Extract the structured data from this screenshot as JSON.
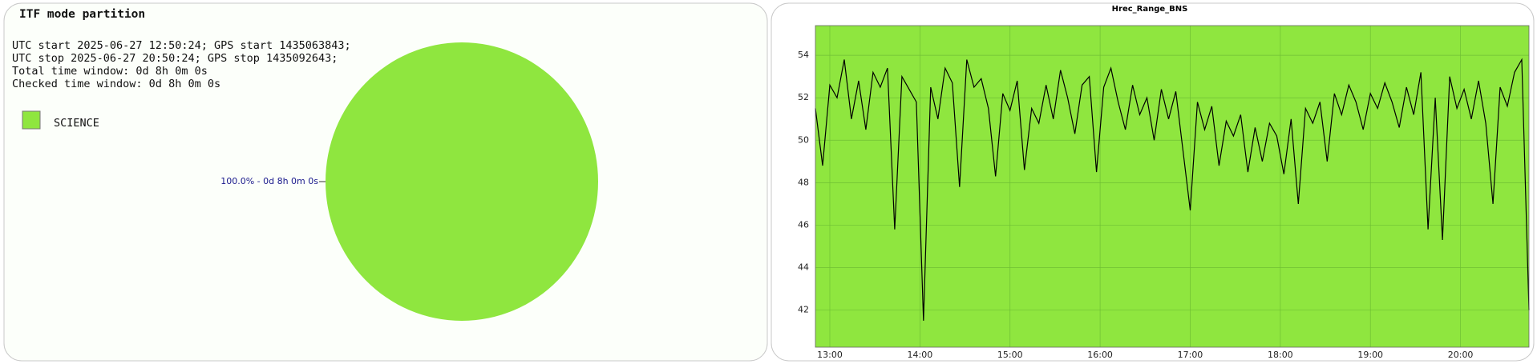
{
  "chart_data": [
    {
      "type": "pie",
      "title": "ITF mode partition",
      "annotations": [
        "UTC start 2025-06-27 12:50:24; GPS start 1435063843;",
        "UTC stop 2025-06-27 20:50:24; GPS stop 1435092643;",
        "Total time window: 0d 8h 0m 0s",
        "Checked time window: 0d 8h 0m 0s"
      ],
      "categories": [
        "SCIENCE"
      ],
      "values": [
        100
      ],
      "value_labels": [
        "100.0% - 0d 8h 0m 0s"
      ],
      "colors": [
        "#8fe63f"
      ]
    },
    {
      "type": "line",
      "title": "Hrec_Range_BNS",
      "color": "#000000",
      "background": "#8fe63f",
      "grid": true,
      "x": [
        12.84,
        12.92,
        13.0,
        13.08,
        13.16,
        13.24,
        13.32,
        13.4,
        13.48,
        13.56,
        13.64,
        13.72,
        13.8,
        13.88,
        13.96,
        14.04,
        14.12,
        14.2,
        14.28,
        14.36,
        14.44,
        14.52,
        14.6,
        14.68,
        14.76,
        14.84,
        14.92,
        15.0,
        15.08,
        15.16,
        15.24,
        15.32,
        15.4,
        15.48,
        15.56,
        15.64,
        15.72,
        15.8,
        15.88,
        15.96,
        16.04,
        16.12,
        16.2,
        16.28,
        16.36,
        16.44,
        16.52,
        16.6,
        16.68,
        16.76,
        16.84,
        16.92,
        17.0,
        17.08,
        17.16,
        17.24,
        17.32,
        17.4,
        17.48,
        17.56,
        17.64,
        17.72,
        17.8,
        17.88,
        17.96,
        18.04,
        18.12,
        18.2,
        18.28,
        18.36,
        18.44,
        18.52,
        18.6,
        18.68,
        18.76,
        18.84,
        18.92,
        19.0,
        19.08,
        19.16,
        19.24,
        19.32,
        19.4,
        19.48,
        19.56,
        19.64,
        19.72,
        19.8,
        19.88,
        19.96,
        20.04,
        20.12,
        20.2,
        20.28,
        20.36,
        20.44,
        20.52,
        20.6,
        20.68,
        20.76
      ],
      "values": [
        51.5,
        48.8,
        52.6,
        52.0,
        53.8,
        51.0,
        52.8,
        50.5,
        53.2,
        52.5,
        53.4,
        45.8,
        53.0,
        52.4,
        51.8,
        41.5,
        52.5,
        51.0,
        53.4,
        52.7,
        47.8,
        53.8,
        52.5,
        52.9,
        51.5,
        48.3,
        52.2,
        51.4,
        52.8,
        48.6,
        51.5,
        50.8,
        52.6,
        51.0,
        53.3,
        52.0,
        50.3,
        52.6,
        53.0,
        48.5,
        52.5,
        53.4,
        51.8,
        50.5,
        52.6,
        51.2,
        52.0,
        50.0,
        52.4,
        51.0,
        52.3,
        49.5,
        46.7,
        51.8,
        50.5,
        51.6,
        48.8,
        50.9,
        50.2,
        51.2,
        48.5,
        50.6,
        49.0,
        50.8,
        50.2,
        48.4,
        51.0,
        47.0,
        51.5,
        50.8,
        51.8,
        49.0,
        52.2,
        51.2,
        52.6,
        51.8,
        50.5,
        52.2,
        51.5,
        52.7,
        51.8,
        50.6,
        52.5,
        51.2,
        53.2,
        45.8,
        52.0,
        45.3,
        53.0,
        51.5,
        52.4,
        51.0,
        52.8,
        50.8,
        47.0,
        52.5,
        51.6,
        53.2,
        53.8,
        42.0
      ],
      "xlim": [
        12.84,
        20.76
      ],
      "xticks": [
        {
          "value": 13,
          "label": "13:00"
        },
        {
          "value": 14,
          "label": "14:00"
        },
        {
          "value": 15,
          "label": "15:00"
        },
        {
          "value": 16,
          "label": "16:00"
        },
        {
          "value": 17,
          "label": "17:00"
        },
        {
          "value": 18,
          "label": "18:00"
        },
        {
          "value": 19,
          "label": "19:00"
        },
        {
          "value": 20,
          "label": "20:00"
        }
      ],
      "ylim": [
        40.25,
        55.4
      ],
      "yticks": [
        42,
        44,
        46,
        48,
        50,
        52,
        54
      ]
    }
  ]
}
